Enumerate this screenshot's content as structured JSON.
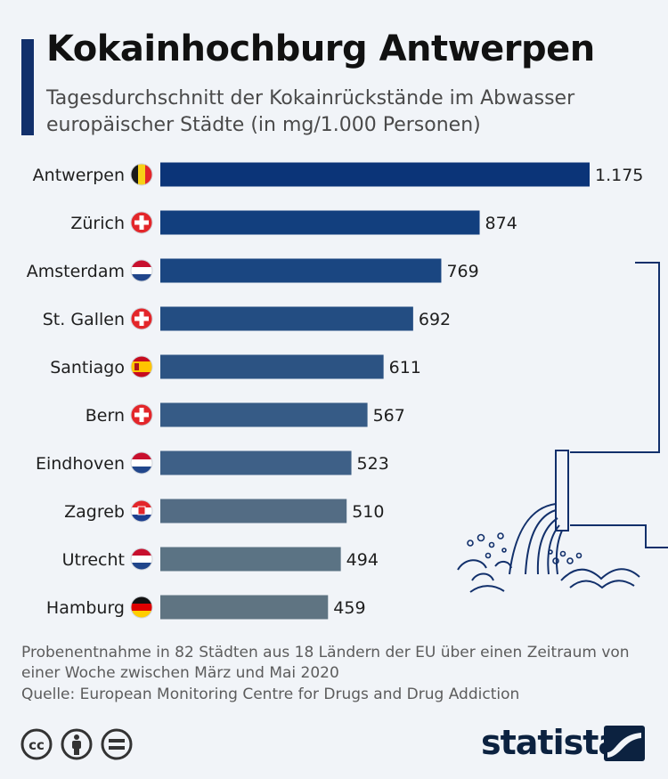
{
  "title": "Kokainhochburg Antwerpen",
  "subtitle": "Tagesdurchschnitt der Kokainrückstände im Abwasser europäischer Städte (in mg/1.000 Personen)",
  "note": "Probenentnahme in 82 Städten aus 18 Ländern der EU über einen Zeitraum von einer Woche zwischen März und Mai 2020",
  "source": "Quelle: European Monitoring Centre for Drugs and Drug Addiction",
  "brand": "statista",
  "colors": {
    "accent": "#12306b",
    "bar_ramp": [
      "#0b3478",
      "#123f7e",
      "#1a4681",
      "#234d82",
      "#2c5383",
      "#365b86",
      "#3e6087",
      "#536c84",
      "#5b7384",
      "#5f7482"
    ]
  },
  "icons": [
    "cc-icon",
    "attribution-icon",
    "no-derivatives-icon",
    "statista-logo-icon",
    "drain-pipe-illustration"
  ],
  "chart_data": {
    "type": "bar",
    "orientation": "horizontal",
    "title": "Kokainhochburg Antwerpen",
    "subtitle": "Tagesdurchschnitt der Kokainrückstände im Abwasser europäischer Städte (in mg/1.000 Personen)",
    "categories": [
      "Antwerpen",
      "Zürich",
      "Amsterdam",
      "St. Gallen",
      "Santiago",
      "Bern",
      "Eindhoven",
      "Zagreb",
      "Utrecht",
      "Hamburg"
    ],
    "flags": [
      "belgium",
      "switzerland",
      "netherlands",
      "switzerland",
      "spain",
      "switzerland",
      "netherlands",
      "croatia",
      "netherlands",
      "germany"
    ],
    "values": [
      1175,
      874,
      769,
      692,
      611,
      567,
      523,
      510,
      494,
      459
    ],
    "value_labels": [
      "1.175",
      "874",
      "769",
      "692",
      "611",
      "567",
      "523",
      "510",
      "494",
      "459"
    ],
    "xlim": [
      0,
      1175
    ],
    "grid": false,
    "legend": "none"
  }
}
